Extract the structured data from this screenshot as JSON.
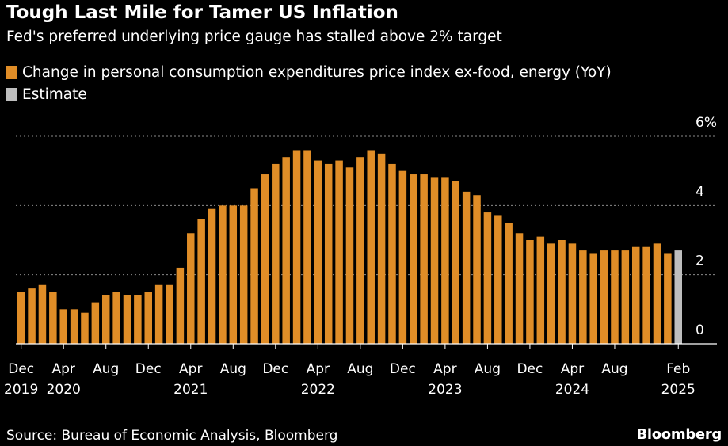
{
  "header": {
    "title": "Tough Last Mile for Tamer US Inflation",
    "subtitle": "Fed's preferred underlying price gauge has stalled above 2% target"
  },
  "legend": [
    {
      "label": "Change in personal consumption expenditures price index ex-food, energy (YoY)",
      "color": "#E08D27"
    },
    {
      "label": "Estimate",
      "color": "#BEBEBE"
    }
  ],
  "footer": {
    "source": "Source: Bureau of Economic Analysis, Bloomberg",
    "brand": "Bloomberg"
  },
  "chart_data": {
    "type": "bar",
    "x_tick_labels": [
      {
        "index": 0,
        "month": "Dec",
        "year": "2019"
      },
      {
        "index": 4,
        "month": "Apr",
        "year": "2020"
      },
      {
        "index": 8,
        "month": "Aug",
        "year": ""
      },
      {
        "index": 12,
        "month": "Dec",
        "year": ""
      },
      {
        "index": 16,
        "month": "Apr",
        "year": "2021"
      },
      {
        "index": 20,
        "month": "Aug",
        "year": ""
      },
      {
        "index": 24,
        "month": "Dec",
        "year": ""
      },
      {
        "index": 28,
        "month": "Apr",
        "year": "2022"
      },
      {
        "index": 32,
        "month": "Aug",
        "year": ""
      },
      {
        "index": 36,
        "month": "Dec",
        "year": ""
      },
      {
        "index": 40,
        "month": "Apr",
        "year": "2023"
      },
      {
        "index": 44,
        "month": "Aug",
        "year": ""
      },
      {
        "index": 48,
        "month": "Dec",
        "year": ""
      },
      {
        "index": 52,
        "month": "Apr",
        "year": "2024"
      },
      {
        "index": 56,
        "month": "Aug",
        "year": ""
      },
      {
        "index": 62,
        "month": "Feb",
        "year": "2025"
      }
    ],
    "y_ticks": [
      "0",
      "2",
      "4",
      "6%"
    ],
    "y_tick_values": [
      0,
      2,
      4,
      6
    ],
    "ylim": [
      0,
      6
    ],
    "grid": true,
    "y_axis_side": "right",
    "x_start": "2019-12",
    "series": [
      {
        "label_ref": "legend.0",
        "color": "#E08D27",
        "values": [
          1.5,
          1.6,
          1.7,
          1.5,
          1.0,
          1.0,
          0.9,
          1.2,
          1.4,
          1.5,
          1.4,
          1.4,
          1.5,
          1.7,
          1.7,
          2.2,
          3.2,
          3.6,
          3.9,
          4.0,
          4.0,
          4.0,
          4.5,
          4.9,
          5.2,
          5.4,
          5.6,
          5.6,
          5.3,
          5.2,
          5.3,
          5.1,
          5.4,
          5.6,
          5.5,
          5.2,
          5.0,
          4.9,
          4.9,
          4.8,
          4.8,
          4.7,
          4.4,
          4.3,
          3.8,
          3.7,
          3.5,
          3.2,
          3.0,
          3.1,
          2.9,
          3.0,
          2.9,
          2.7,
          2.6,
          2.7,
          2.7,
          2.7,
          2.8,
          2.8,
          2.9,
          2.6
        ]
      },
      {
        "label_ref": "legend.1",
        "color": "#BEBEBE",
        "values_at": [
          {
            "index": 62,
            "value": 2.7
          }
        ]
      }
    ]
  }
}
